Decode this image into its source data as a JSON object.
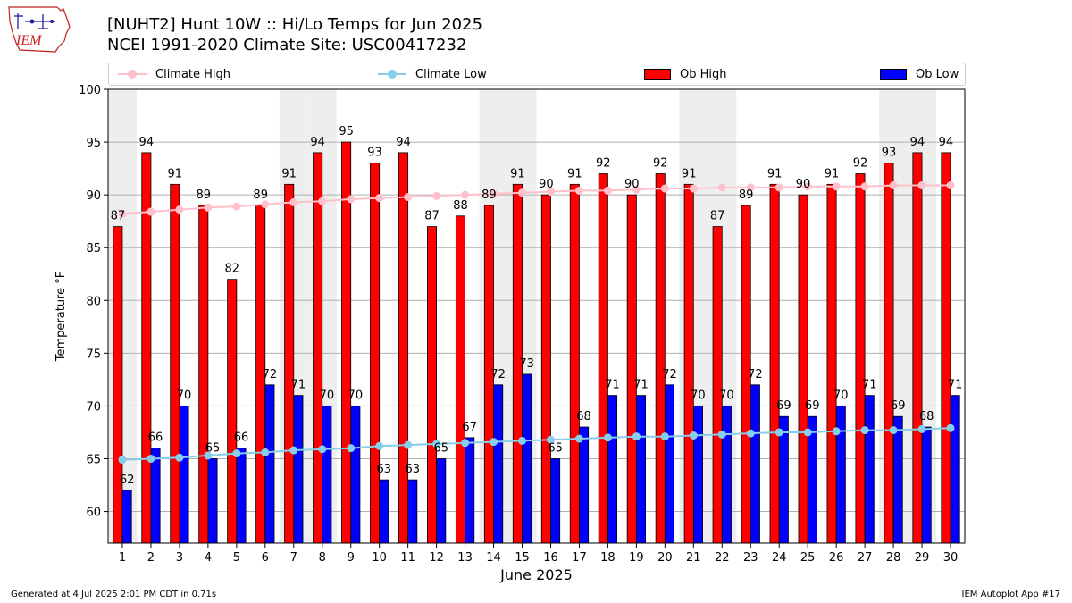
{
  "header": {
    "title_line1": "[NUHT2] Hunt 10W :: Hi/Lo Temps for Jun 2025",
    "title_line2": "NCEI 1991-2020 Climate Site: USC00417232",
    "logo_text": "IEM"
  },
  "footer": {
    "left": "Generated at 4 Jul 2025 2:01 PM CDT in 0.71s",
    "right": "IEM Autoplot App #17"
  },
  "chart_data": {
    "type": "bar",
    "xlabel": "June 2025",
    "ylabel": "Temperature °F",
    "ylim": [
      57,
      100
    ],
    "yticks": [
      60,
      65,
      70,
      75,
      80,
      85,
      90,
      95,
      100
    ],
    "grid": true,
    "legend_placement": "top",
    "weekend_shading_days": [
      1,
      7,
      8,
      14,
      15,
      21,
      22,
      28,
      29
    ],
    "categories": [
      "1",
      "2",
      "3",
      "4",
      "5",
      "6",
      "7",
      "8",
      "9",
      "10",
      "11",
      "12",
      "13",
      "14",
      "15",
      "16",
      "17",
      "18",
      "19",
      "20",
      "21",
      "22",
      "23",
      "24",
      "25",
      "26",
      "27",
      "28",
      "29",
      "30"
    ],
    "series": [
      {
        "name": "Climate High",
        "kind": "line",
        "color": "#ffc0cb",
        "values": [
          88.2,
          88.4,
          88.6,
          88.8,
          88.9,
          89.1,
          89.3,
          89.4,
          89.6,
          89.7,
          89.8,
          89.9,
          90.0,
          90.1,
          90.2,
          90.3,
          90.4,
          90.4,
          90.5,
          90.6,
          90.6,
          90.7,
          90.7,
          90.7,
          90.8,
          90.8,
          90.8,
          90.9,
          90.9,
          90.9
        ]
      },
      {
        "name": "Climate Low",
        "kind": "line",
        "color": "#87ceeb",
        "values": [
          64.9,
          65.0,
          65.1,
          65.3,
          65.5,
          65.6,
          65.8,
          65.9,
          66.0,
          66.2,
          66.3,
          66.4,
          66.5,
          66.6,
          66.7,
          66.8,
          66.9,
          67.0,
          67.1,
          67.1,
          67.2,
          67.3,
          67.4,
          67.5,
          67.5,
          67.6,
          67.7,
          67.7,
          67.8,
          67.9
        ]
      },
      {
        "name": "Ob High",
        "kind": "bar",
        "color": "#ff0000",
        "values": [
          87,
          94,
          91,
          89,
          82,
          89,
          91,
          94,
          95,
          93,
          94,
          87,
          88,
          89,
          91,
          90,
          91,
          92,
          90,
          92,
          91,
          87,
          89,
          91,
          90,
          91,
          92,
          93,
          94,
          94
        ]
      },
      {
        "name": "Ob Low",
        "kind": "bar",
        "color": "#0000ff",
        "values": [
          62,
          66,
          70,
          65,
          66,
          72,
          71,
          70,
          70,
          63,
          63,
          65,
          67,
          72,
          73,
          65,
          68,
          71,
          71,
          72,
          70,
          70,
          72,
          69,
          69,
          70,
          71,
          69,
          68,
          71
        ]
      }
    ]
  }
}
